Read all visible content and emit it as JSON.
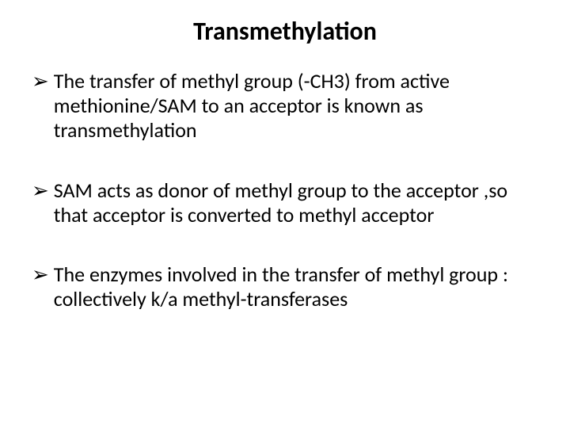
{
  "slide": {
    "background_color": "#ffffff",
    "text_color": "#000000",
    "title": {
      "text": "Transmethylation",
      "fontsize": 32,
      "fontweight": 700,
      "align": "center"
    },
    "bullet_marker": "➢",
    "body_fontsize": 26,
    "bullets": [
      {
        "text": "The transfer of methyl group (-CH3) from active methionine/SAM to an acceptor is known as transmethylation"
      },
      {
        "text": "SAM acts as donor of methyl group to the acceptor ,so that acceptor is converted to methyl acceptor"
      },
      {
        "text": "The enzymes involved in the transfer of methyl group : collectively k/a methyl-transferases"
      }
    ]
  }
}
